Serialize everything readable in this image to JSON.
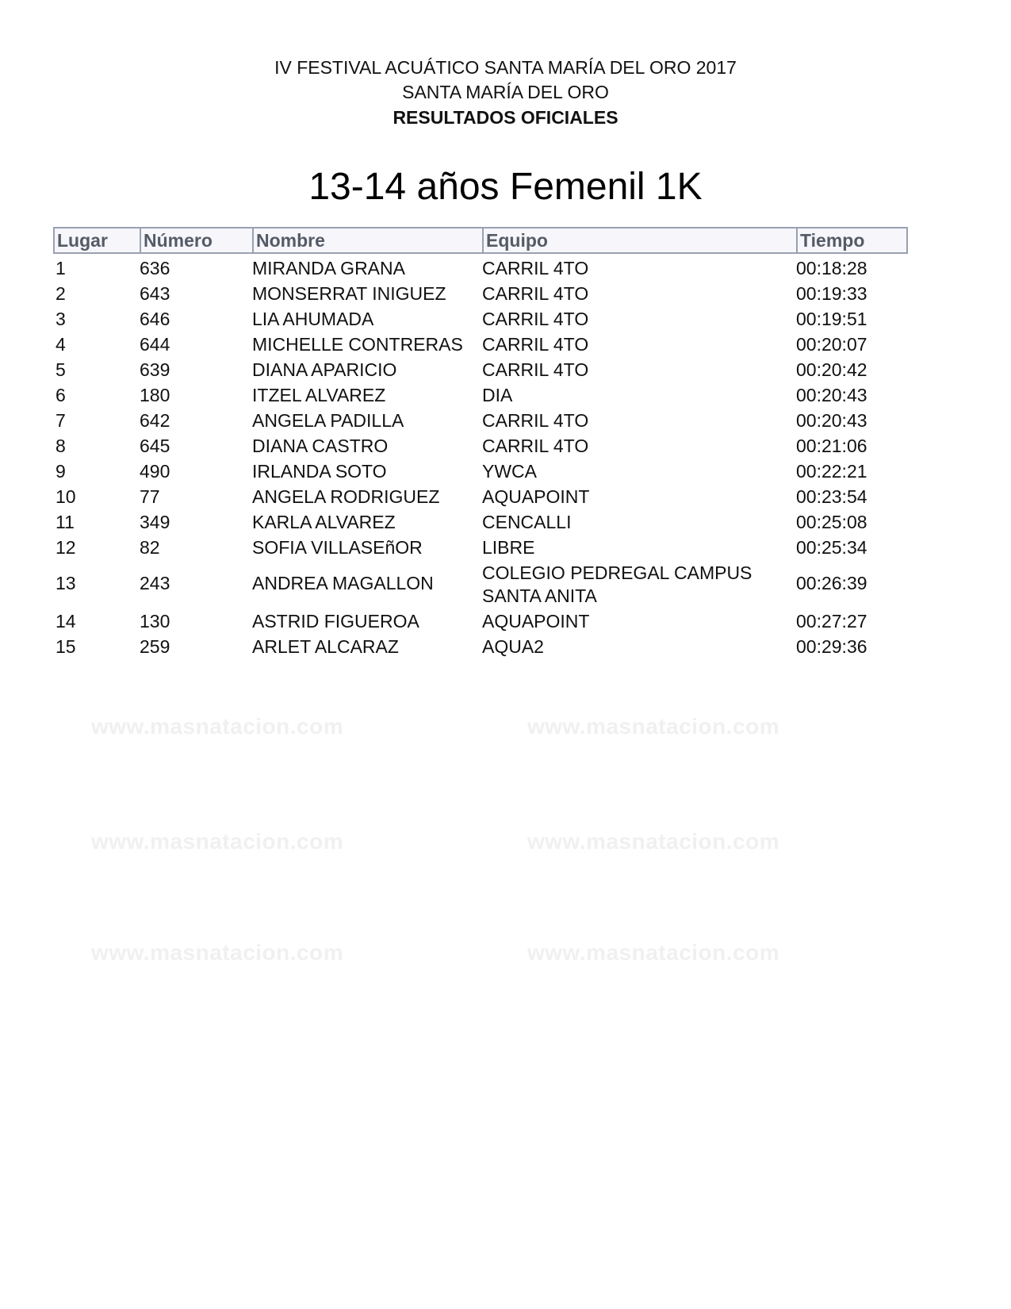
{
  "header": {
    "line1": "IV FESTIVAL ACUÁTICO SANTA MARÍA DEL ORO 2017",
    "line2": "SANTA MARÍA DEL ORO",
    "line3": "RESULTADOS OFICIALES"
  },
  "title": "13-14 años Femenil 1K",
  "watermark": "www.masnatacion.com",
  "columns": [
    "Lugar",
    "Número",
    "Nombre",
    "Equipo",
    "Tiempo"
  ],
  "rows": [
    [
      "1",
      "636",
      "MIRANDA GRANA",
      "CARRIL 4TO",
      "00:18:28"
    ],
    [
      "2",
      "643",
      "MONSERRAT INIGUEZ",
      "CARRIL 4TO",
      "00:19:33"
    ],
    [
      "3",
      "646",
      "LIA AHUMADA",
      "CARRIL 4TO",
      "00:19:51"
    ],
    [
      "4",
      "644",
      "MICHELLE CONTRERAS",
      "CARRIL 4TO",
      "00:20:07"
    ],
    [
      "5",
      "639",
      "DIANA APARICIO",
      "CARRIL 4TO",
      "00:20:42"
    ],
    [
      "6",
      "180",
      "ITZEL ALVAREZ",
      "DIA",
      "00:20:43"
    ],
    [
      "7",
      "642",
      "ANGELA PADILLA",
      "CARRIL 4TO",
      "00:20:43"
    ],
    [
      "8",
      "645",
      "DIANA CASTRO",
      "CARRIL 4TO",
      "00:21:06"
    ],
    [
      "9",
      "490",
      "IRLANDA SOTO",
      "YWCA",
      "00:22:21"
    ],
    [
      "10",
      "77",
      "ANGELA RODRIGUEZ",
      "AQUAPOINT",
      "00:23:54"
    ],
    [
      "11",
      "349",
      "KARLA ALVAREZ",
      "CENCALLI",
      "00:25:08"
    ],
    [
      "12",
      "82",
      "SOFIA VILLASEñOR",
      "LIBRE",
      "00:25:34"
    ],
    [
      "13",
      "243",
      "ANDREA MAGALLON",
      "COLEGIO PEDREGAL CAMPUS SANTA ANITA",
      "00:26:39"
    ],
    [
      "14",
      "130",
      "ASTRID FIGUEROA",
      "AQUAPOINT",
      "00:27:27"
    ],
    [
      "15",
      "259",
      "ARLET ALCARAZ",
      "AQUA2",
      "00:29:36"
    ]
  ]
}
